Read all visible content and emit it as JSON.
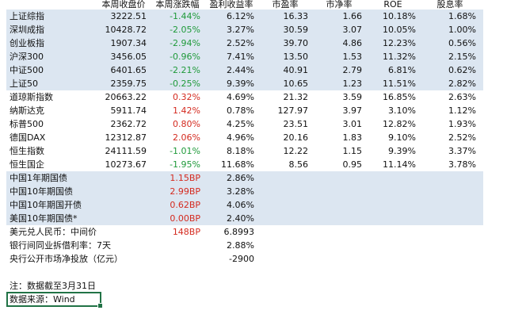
{
  "table": {
    "header": [
      "本周收盘价",
      "本周涨跌幅",
      "盈利收益率",
      "市盈率",
      "市净率",
      "ROE",
      "股息率"
    ],
    "sections": [
      {
        "shaded": true,
        "rows": [
          [
            "上证综指",
            "3222.51",
            "-1.44%",
            "6.12%",
            "16.33",
            "1.66",
            "10.18%",
            "1.68%"
          ],
          [
            "深圳成指",
            "10428.72",
            "-2.05%",
            "3.27%",
            "30.59",
            "3.07",
            "10.05%",
            "1.00%"
          ],
          [
            "创业板指",
            "1907.34",
            "-2.94%",
            "2.52%",
            "39.70",
            "4.86",
            "12.23%",
            "0.56%"
          ],
          [
            "沪深300",
            "3456.05",
            "-0.96%",
            "7.41%",
            "13.50",
            "1.53",
            "11.32%",
            "2.15%"
          ],
          [
            "中证500",
            "6401.65",
            "-2.21%",
            "2.44%",
            "40.91",
            "2.79",
            "6.81%",
            "0.62%"
          ],
          [
            "上证50",
            "2359.75",
            "-0.25%",
            "9.39%",
            "10.65",
            "1.23",
            "11.51%",
            "2.82%"
          ]
        ]
      },
      {
        "shaded": false,
        "rows": [
          [
            "道琼斯指数",
            "20663.22",
            "0.32%",
            "4.69%",
            "21.32",
            "3.59",
            "16.85%",
            "2.63%"
          ],
          [
            "纳斯达克",
            "5911.74",
            "1.42%",
            "0.78%",
            "127.97",
            "3.97",
            "3.10%",
            "1.12%"
          ],
          [
            "标普500",
            "2362.72",
            "0.80%",
            "4.25%",
            "23.51",
            "3.01",
            "12.82%",
            "1.93%"
          ],
          [
            "德国DAX",
            "12312.87",
            "2.06%",
            "4.96%",
            "20.16",
            "1.83",
            "9.10%",
            "2.52%"
          ],
          [
            "恒生指数",
            "24111.59",
            "-1.01%",
            "8.18%",
            "12.22",
            "1.15",
            "9.39%",
            "3.37%"
          ],
          [
            "恒生国企",
            "10273.67",
            "-1.95%",
            "11.68%",
            "8.56",
            "0.95",
            "11.14%",
            "3.78%"
          ]
        ]
      },
      {
        "shaded": true,
        "rows": [
          [
            "中国1年期国债",
            null,
            "1.15BP",
            "2.86%",
            null,
            null,
            null,
            null
          ],
          [
            "中国10年期国债",
            null,
            "2.99BP",
            "3.28%",
            null,
            null,
            null,
            null
          ],
          [
            "中国10年期国开债",
            null,
            "0.62BP",
            "4.06%",
            null,
            null,
            null,
            null
          ],
          [
            "美国10年期国债*",
            null,
            "0.00BP",
            "2.40%",
            null,
            null,
            null,
            null
          ]
        ]
      },
      {
        "shaded": false,
        "rows": [
          [
            "美元兑人民币：中间价",
            null,
            "148BP",
            "6.8993",
            null,
            null,
            null,
            null
          ],
          [
            "银行间同业拆借利率：7天",
            null,
            null,
            "2.88%",
            null,
            null,
            null,
            null
          ],
          [
            "央行公开市场净投放（亿元）",
            null,
            null,
            "-2900",
            null,
            null,
            null,
            null
          ]
        ]
      }
    ],
    "notes": [
      "注：数据截至3月31日",
      "数据来源：Wind"
    ]
  }
}
